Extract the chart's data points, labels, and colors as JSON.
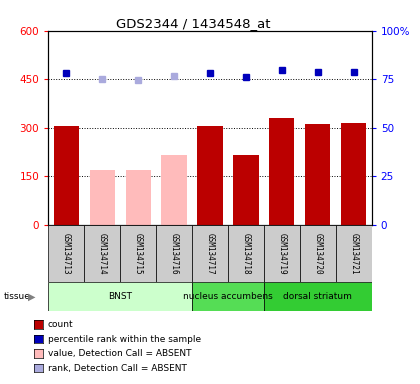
{
  "title": "GDS2344 / 1434548_at",
  "samples": [
    "GSM134713",
    "GSM134714",
    "GSM134715",
    "GSM134716",
    "GSM134717",
    "GSM134718",
    "GSM134719",
    "GSM134720",
    "GSM134721"
  ],
  "bar_values": [
    305,
    170,
    170,
    215,
    305,
    215,
    330,
    310,
    315
  ],
  "bar_absent": [
    false,
    true,
    true,
    true,
    false,
    false,
    false,
    false,
    false
  ],
  "dot_values": [
    470,
    450,
    447,
    460,
    470,
    456,
    480,
    473,
    473
  ],
  "dot_absent": [
    false,
    true,
    true,
    true,
    false,
    false,
    false,
    false,
    false
  ],
  "ylim": [
    0,
    600
  ],
  "yticks_left": [
    0,
    150,
    300,
    450,
    600
  ],
  "yticks_right": [
    0,
    25,
    50,
    75,
    100
  ],
  "tissue_groups": [
    {
      "label": "BNST",
      "start": 0,
      "end": 4,
      "color": "#ccffcc"
    },
    {
      "label": "nucleus accumbens",
      "start": 4,
      "end": 6,
      "color": "#55dd55"
    },
    {
      "label": "dorsal striatum",
      "start": 6,
      "end": 9,
      "color": "#33cc33"
    }
  ],
  "bar_color_present": "#bb0000",
  "bar_color_absent": "#ffbbbb",
  "dot_color_present": "#0000bb",
  "dot_color_absent": "#aaaadd",
  "sample_bg": "#cccccc",
  "legend_items": [
    {
      "color": "#bb0000",
      "label": "count"
    },
    {
      "color": "#0000bb",
      "label": "percentile rank within the sample"
    },
    {
      "color": "#ffbbbb",
      "label": "value, Detection Call = ABSENT"
    },
    {
      "color": "#aaaadd",
      "label": "rank, Detection Call = ABSENT"
    }
  ]
}
